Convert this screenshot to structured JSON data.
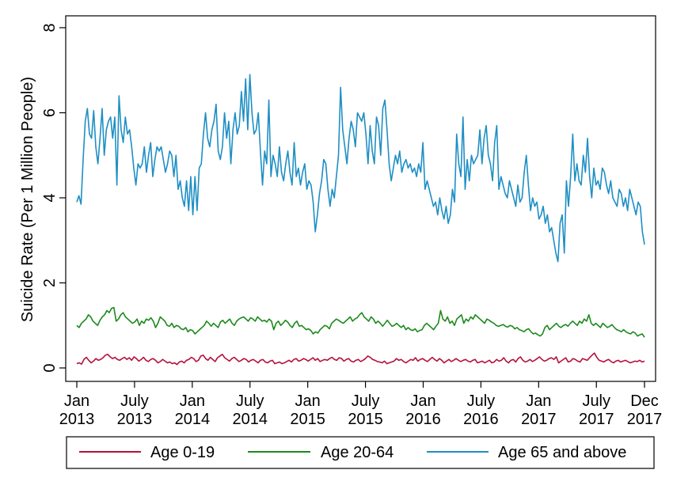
{
  "chart_data": {
    "type": "line",
    "title": "",
    "xlabel": "",
    "ylabel": "Suicide Rate (Per 1 Million People)",
    "ylim": [
      0,
      8
    ],
    "yticks": [
      "0",
      "2",
      "4",
      "6",
      "8"
    ],
    "xlim": [
      "2013-01",
      "2017-12"
    ],
    "xticks": [
      {
        "date": "2013-01",
        "line1": "Jan",
        "line2": "2013"
      },
      {
        "date": "2013-07",
        "line1": "July",
        "line2": "2013"
      },
      {
        "date": "2014-01",
        "line1": "Jan",
        "line2": "2014"
      },
      {
        "date": "2014-07",
        "line1": "July",
        "line2": "2014"
      },
      {
        "date": "2015-01",
        "line1": "Jan",
        "line2": "2015"
      },
      {
        "date": "2015-07",
        "line1": "July",
        "line2": "2015"
      },
      {
        "date": "2016-01",
        "line1": "Jan",
        "line2": "2016"
      },
      {
        "date": "2016-07",
        "line1": "July",
        "line2": "2016"
      },
      {
        "date": "2017-01",
        "line1": "Jan",
        "line2": "2017"
      },
      {
        "date": "2017-07",
        "line1": "July",
        "line2": "2017"
      },
      {
        "date": "2017-12",
        "line1": "Dec",
        "line2": "2017"
      }
    ],
    "grid": false,
    "legend_position": "bottom",
    "x_resolution": "weekly",
    "series": [
      {
        "name": "Age 0-19",
        "color": "#b5103f",
        "values": [
          0.1,
          0.12,
          0.09,
          0.2,
          0.25,
          0.18,
          0.12,
          0.16,
          0.22,
          0.18,
          0.2,
          0.24,
          0.3,
          0.32,
          0.26,
          0.22,
          0.25,
          0.2,
          0.18,
          0.22,
          0.25,
          0.2,
          0.24,
          0.18,
          0.26,
          0.22,
          0.16,
          0.2,
          0.25,
          0.18,
          0.15,
          0.2,
          0.22,
          0.18,
          0.12,
          0.15,
          0.2,
          0.16,
          0.12,
          0.14,
          0.1,
          0.12,
          0.08,
          0.14,
          0.16,
          0.12,
          0.18,
          0.2,
          0.25,
          0.22,
          0.15,
          0.18,
          0.28,
          0.3,
          0.22,
          0.18,
          0.25,
          0.2,
          0.15,
          0.24,
          0.28,
          0.32,
          0.24,
          0.2,
          0.16,
          0.22,
          0.25,
          0.2,
          0.15,
          0.18,
          0.22,
          0.2,
          0.14,
          0.18,
          0.2,
          0.16,
          0.12,
          0.18,
          0.2,
          0.14,
          0.12,
          0.16,
          0.18,
          0.1,
          0.12,
          0.14,
          0.1,
          0.12,
          0.15,
          0.18,
          0.14,
          0.2,
          0.22,
          0.16,
          0.18,
          0.22,
          0.2,
          0.16,
          0.2,
          0.24,
          0.18,
          0.22,
          0.15,
          0.18,
          0.2,
          0.18,
          0.22,
          0.25,
          0.2,
          0.18,
          0.24,
          0.22,
          0.16,
          0.2,
          0.22,
          0.16,
          0.14,
          0.18,
          0.2,
          0.15,
          0.18,
          0.22,
          0.28,
          0.25,
          0.2,
          0.18,
          0.15,
          0.14,
          0.12,
          0.16,
          0.1,
          0.12,
          0.14,
          0.16,
          0.22,
          0.18,
          0.2,
          0.15,
          0.12,
          0.16,
          0.2,
          0.18,
          0.24,
          0.16,
          0.2,
          0.22,
          0.18,
          0.15,
          0.2,
          0.25,
          0.2,
          0.16,
          0.22,
          0.18,
          0.12,
          0.16,
          0.2,
          0.15,
          0.18,
          0.22,
          0.18,
          0.15,
          0.18,
          0.2,
          0.16,
          0.14,
          0.18,
          0.2,
          0.12,
          0.14,
          0.16,
          0.12,
          0.15,
          0.18,
          0.12,
          0.14,
          0.2,
          0.16,
          0.18,
          0.24,
          0.16,
          0.12,
          0.18,
          0.2,
          0.14,
          0.22,
          0.26,
          0.18,
          0.14,
          0.16,
          0.2,
          0.15,
          0.18,
          0.22,
          0.26,
          0.2,
          0.16,
          0.18,
          0.22,
          0.24,
          0.2,
          0.26,
          0.12,
          0.16,
          0.2,
          0.24,
          0.14,
          0.16,
          0.22,
          0.2,
          0.16,
          0.14,
          0.22,
          0.2,
          0.18,
          0.24,
          0.3,
          0.35,
          0.25,
          0.18,
          0.16,
          0.14,
          0.18,
          0.2,
          0.15,
          0.12,
          0.16,
          0.18,
          0.14,
          0.16,
          0.18,
          0.15,
          0.12,
          0.14,
          0.16,
          0.15,
          0.18,
          0.14,
          0.16
        ]
      },
      {
        "name": "Age 20-64",
        "color": "#1d8a1d",
        "values": [
          1.0,
          0.95,
          1.05,
          1.1,
          1.15,
          1.25,
          1.2,
          1.1,
          1.05,
          1.0,
          1.12,
          1.2,
          1.25,
          1.35,
          1.3,
          1.4,
          1.42,
          1.1,
          1.15,
          1.25,
          1.3,
          1.2,
          1.15,
          1.1,
          1.05,
          1.08,
          1.15,
          1.0,
          1.1,
          1.05,
          1.15,
          1.12,
          1.18,
          1.1,
          0.95,
          1.05,
          1.2,
          1.15,
          1.1,
          1.0,
          0.98,
          1.05,
          0.95,
          1.0,
          0.98,
          0.92,
          0.9,
          0.95,
          0.85,
          0.9,
          0.88,
          0.8,
          0.85,
          0.9,
          0.95,
          1.0,
          1.1,
          1.05,
          0.98,
          1.05,
          1.0,
          0.95,
          1.08,
          1.12,
          1.05,
          1.1,
          1.15,
          1.05,
          1.0,
          1.1,
          1.15,
          1.18,
          1.2,
          1.15,
          1.1,
          1.18,
          1.15,
          1.1,
          1.2,
          1.15,
          1.1,
          1.12,
          1.08,
          1.15,
          1.1,
          0.9,
          1.05,
          1.1,
          1.0,
          1.05,
          1.12,
          1.08,
          1.0,
          0.95,
          1.05,
          1.1,
          0.98,
          1.0,
          0.95,
          0.9,
          0.92,
          0.88,
          0.8,
          0.85,
          0.82,
          0.9,
          0.95,
          1.0,
          0.98,
          0.92,
          1.05,
          1.1,
          1.15,
          1.12,
          1.08,
          1.05,
          1.1,
          1.15,
          1.2,
          1.1,
          1.15,
          1.18,
          1.25,
          1.3,
          1.2,
          1.15,
          1.1,
          1.2,
          1.15,
          1.05,
          1.1,
          1.05,
          0.98,
          1.05,
          1.12,
          1.05,
          0.98,
          1.0,
          1.05,
          1.0,
          0.95,
          1.0,
          0.9,
          0.95,
          0.9,
          0.88,
          0.92,
          0.85,
          0.88,
          0.9,
          1.0,
          1.05,
          1.0,
          0.95,
          0.9,
          0.98,
          1.05,
          1.35,
          1.15,
          1.1,
          1.2,
          1.05,
          1.1,
          1.0,
          1.15,
          1.2,
          1.25,
          1.05,
          1.15,
          1.1,
          1.2,
          1.15,
          1.25,
          1.2,
          1.15,
          1.1,
          1.05,
          1.15,
          1.12,
          1.08,
          1.05,
          1.0,
          0.98,
          1.0,
          1.02,
          0.98,
          0.96,
          1.0,
          0.98,
          0.92,
          0.95,
          0.9,
          0.88,
          0.85,
          0.9,
          0.92,
          0.85,
          0.8,
          0.82,
          0.78,
          0.75,
          0.8,
          0.95,
          1.0,
          0.9,
          0.95,
          1.0,
          1.05,
          0.98,
          0.95,
          1.0,
          1.02,
          0.98,
          1.05,
          1.1,
          1.05,
          1.0,
          1.1,
          1.05,
          1.15,
          1.1,
          1.25,
          1.05,
          1.0,
          1.05,
          1.0,
          0.95,
          1.05,
          1.0,
          0.95,
          0.98,
          1.02,
          0.95,
          0.9,
          0.88,
          0.85,
          0.9,
          0.85,
          0.82,
          0.8,
          0.85,
          0.82,
          0.75,
          0.78,
          0.8,
          0.72
        ]
      },
      {
        "name": "Age 65 and above",
        "color": "#1f8fc4",
        "values": [
          3.9,
          4.05,
          3.85,
          4.9,
          5.8,
          6.1,
          5.5,
          5.4,
          6.05,
          5.2,
          4.8,
          5.4,
          6.1,
          5.0,
          5.6,
          5.8,
          5.9,
          5.4,
          5.9,
          4.3,
          6.4,
          5.6,
          5.3,
          5.9,
          5.5,
          5.6,
          5.2,
          4.7,
          4.3,
          4.8,
          4.7,
          4.8,
          5.2,
          4.6,
          5.0,
          5.3,
          4.5,
          4.9,
          5.2,
          5.1,
          5.2,
          4.9,
          4.6,
          4.8,
          5.1,
          5.0,
          4.5,
          5.0,
          4.2,
          4.4,
          4.0,
          3.8,
          4.4,
          3.7,
          4.5,
          3.6,
          4.5,
          3.7,
          4.7,
          4.8,
          5.5,
          6.0,
          5.4,
          5.2,
          5.6,
          5.8,
          6.2,
          5.1,
          4.9,
          5.2,
          6.0,
          5.4,
          5.8,
          4.8,
          5.6,
          6.0,
          5.5,
          5.7,
          6.5,
          5.8,
          6.8,
          5.6,
          6.9,
          6.0,
          5.5,
          5.6,
          6.0,
          5.1,
          4.3,
          5.1,
          4.8,
          6.3,
          4.5,
          5.0,
          4.8,
          4.5,
          5.2,
          4.6,
          4.4,
          4.8,
          5.1,
          4.6,
          4.3,
          5.3,
          4.5,
          4.7,
          4.3,
          4.6,
          4.8,
          4.2,
          4.4,
          4.3,
          3.9,
          3.2,
          3.6,
          4.1,
          4.4,
          4.9,
          4.8,
          4.2,
          3.8,
          4.2,
          4.0,
          4.5,
          5.0,
          6.6,
          5.6,
          5.2,
          4.8,
          5.4,
          5.8,
          5.6,
          5.2,
          6.0,
          5.9,
          5.8,
          6.0,
          5.5,
          4.8,
          5.7,
          5.1,
          4.8,
          5.9,
          5.7,
          5.0,
          6.1,
          6.3,
          5.6,
          4.8,
          4.4,
          4.7,
          5.0,
          4.8,
          5.1,
          4.6,
          4.8,
          4.9,
          4.7,
          4.8,
          4.6,
          4.7,
          4.5,
          4.8,
          4.6,
          5.3,
          4.2,
          4.4,
          4.2,
          4.0,
          3.8,
          3.9,
          3.6,
          4.0,
          3.7,
          3.5,
          3.8,
          3.4,
          3.6,
          4.2,
          3.9,
          5.5,
          4.8,
          4.5,
          5.9,
          4.2,
          4.9,
          4.4,
          5.0,
          4.8,
          4.9,
          5.0,
          5.6,
          4.8,
          5.4,
          5.7,
          5.0,
          4.8,
          4.4,
          5.3,
          5.7,
          4.2,
          4.5,
          4.3,
          4.1,
          4.0,
          4.4,
          4.2,
          4.0,
          3.8,
          4.3,
          3.9,
          4.0,
          4.6,
          5.0,
          4.3,
          3.7,
          4.0,
          3.8,
          3.9,
          3.5,
          3.6,
          3.8,
          3.4,
          3.6,
          3.2,
          3.3,
          3.0,
          2.7,
          2.5,
          3.4,
          3.6,
          2.7,
          4.4,
          3.8,
          4.5,
          5.5,
          4.4,
          4.8,
          4.4,
          4.3,
          5.0,
          4.6,
          5.4,
          4.5,
          4.0,
          4.7,
          4.3,
          4.4,
          4.2,
          4.7,
          4.6,
          4.3,
          4.1,
          4.4,
          4.0,
          3.9,
          3.8,
          4.2,
          4.1,
          3.8,
          4.0,
          3.7,
          4.2,
          4.0,
          3.8,
          3.6,
          3.9,
          3.8,
          3.2,
          2.9
        ]
      }
    ]
  }
}
